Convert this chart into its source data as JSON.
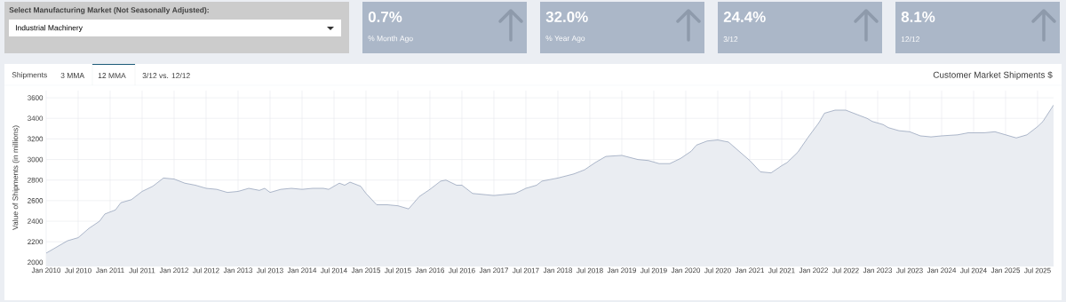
{
  "chart_data": {
    "type": "area",
    "title": "Customer Market Shipments $",
    "ylabel": "Value of Shipments (in millions)",
    "annotations": [
      "Select Manufacturing Market (Not Seasonally Adjusted):",
      "Industrial Machinery",
      "0.7%",
      "% Month Ago",
      "32.0%",
      "% Year Ago",
      "24.4%",
      "3/12",
      "8.1%",
      "12/12",
      "Shipments",
      "3 MMA",
      "12 MMA",
      "3/12 vs. 12/12"
    ],
    "x": [
      "2010-01",
      "2010-03",
      "2010-05",
      "2010-07",
      "2010-09",
      "2010-11",
      "2010-12",
      "2011-02",
      "2011-03",
      "2011-05",
      "2011-07",
      "2011-09",
      "2011-11",
      "2012-01",
      "2012-03",
      "2012-05",
      "2012-07",
      "2012-09",
      "2012-11",
      "2013-01",
      "2013-03",
      "2013-05",
      "2013-06",
      "2013-07",
      "2013-09",
      "2013-11",
      "2014-01",
      "2014-03",
      "2014-05",
      "2014-06",
      "2014-08",
      "2014-09",
      "2014-10",
      "2014-12",
      "2015-01",
      "2015-03",
      "2015-05",
      "2015-07",
      "2015-09",
      "2015-11",
      "2016-01",
      "2016-03",
      "2016-04",
      "2016-06",
      "2016-07",
      "2016-09",
      "2017-01",
      "2017-05",
      "2017-07",
      "2017-09",
      "2017-10",
      "2018-01",
      "2018-04",
      "2018-06",
      "2018-08",
      "2018-10",
      "2019-01",
      "2019-04",
      "2019-06",
      "2019-08",
      "2019-10",
      "2019-12",
      "2020-02",
      "2020-03",
      "2020-05",
      "2020-07",
      "2020-09",
      "2020-11",
      "2021-01",
      "2021-03",
      "2021-05",
      "2021-07",
      "2021-08",
      "2021-10",
      "2021-12",
      "2022-02",
      "2022-03",
      "2022-05",
      "2022-07",
      "2022-08",
      "2022-09",
      "2022-11",
      "2022-12",
      "2023-02",
      "2023-03",
      "2023-05",
      "2023-07",
      "2023-09",
      "2023-11",
      "2024-01",
      "2024-04",
      "2024-06",
      "2024-09",
      "2024-11",
      "2025-01",
      "2025-03",
      "2025-05",
      "2025-07",
      "2025-08",
      "2025-09",
      "2025-10"
    ],
    "values": [
      2090,
      2150,
      2210,
      2240,
      2330,
      2400,
      2470,
      2510,
      2580,
      2610,
      2690,
      2740,
      2820,
      2810,
      2770,
      2750,
      2720,
      2710,
      2680,
      2690,
      2720,
      2700,
      2720,
      2680,
      2710,
      2720,
      2710,
      2720,
      2720,
      2710,
      2770,
      2750,
      2780,
      2740,
      2670,
      2560,
      2560,
      2550,
      2520,
      2640,
      2710,
      2790,
      2800,
      2750,
      2750,
      2670,
      2650,
      2670,
      2720,
      2750,
      2790,
      2820,
      2860,
      2900,
      2970,
      3030,
      3040,
      3000,
      2990,
      2960,
      2960,
      3010,
      3080,
      3140,
      3180,
      3190,
      3170,
      3080,
      2990,
      2880,
      2870,
      2940,
      2970,
      3070,
      3220,
      3360,
      3450,
      3480,
      3480,
      3460,
      3440,
      3400,
      3370,
      3340,
      3310,
      3280,
      3270,
      3230,
      3220,
      3230,
      3240,
      3260,
      3260,
      3270,
      3240,
      3210,
      3240,
      3320,
      3370,
      3450,
      3530
    ],
    "color": "#8d9bb5",
    "xlim": [
      "2010-01",
      "2025-10"
    ],
    "xticks": [
      {
        "value": "2010-01",
        "label": "Jan 2010"
      },
      {
        "value": "2010-07",
        "label": "Jul 2010"
      },
      {
        "value": "2011-01",
        "label": "Jan 2011"
      },
      {
        "value": "2011-07",
        "label": "Jul 2011"
      },
      {
        "value": "2012-01",
        "label": "Jan 2012"
      },
      {
        "value": "2012-07",
        "label": "Jul 2012"
      },
      {
        "value": "2013-01",
        "label": "Jan 2013"
      },
      {
        "value": "2013-07",
        "label": "Jul 2013"
      },
      {
        "value": "2014-01",
        "label": "Jan 2014"
      },
      {
        "value": "2014-07",
        "label": "Jul 2014"
      },
      {
        "value": "2015-01",
        "label": "Jan 2015"
      },
      {
        "value": "2015-07",
        "label": "Jul 2015"
      },
      {
        "value": "2016-01",
        "label": "Jan 2016"
      },
      {
        "value": "2016-07",
        "label": "Jul 2016"
      },
      {
        "value": "2017-01",
        "label": "Jan 2017"
      },
      {
        "value": "2017-07",
        "label": "Jul 2017"
      },
      {
        "value": "2018-01",
        "label": "Jan 2018"
      },
      {
        "value": "2018-07",
        "label": "Jul 2018"
      },
      {
        "value": "2019-01",
        "label": "Jan 2019"
      },
      {
        "value": "2019-07",
        "label": "Jul 2019"
      },
      {
        "value": "2020-01",
        "label": "Jan 2020"
      },
      {
        "value": "2020-07",
        "label": "Jul 2020"
      },
      {
        "value": "2021-01",
        "label": "Jan 2021"
      },
      {
        "value": "2021-07",
        "label": "Jul 2021"
      },
      {
        "value": "2022-01",
        "label": "Jan 2022"
      },
      {
        "value": "2022-07",
        "label": "Jul 2022"
      },
      {
        "value": "2023-01",
        "label": "Jan 2023"
      },
      {
        "value": "2023-07",
        "label": "Jul 2023"
      },
      {
        "value": "2024-01",
        "label": "Jan 2024"
      },
      {
        "value": "2024-07",
        "label": "Jul 2024"
      },
      {
        "value": "2025-01",
        "label": "Jan 2025"
      },
      {
        "value": "2025-07",
        "label": "Jul 2025"
      }
    ],
    "ylim": [
      1960,
      3670
    ],
    "yticks": [
      2000,
      2200,
      2400,
      2600,
      2800,
      3000,
      3200,
      3400,
      3600
    ],
    "grid": true
  }
}
